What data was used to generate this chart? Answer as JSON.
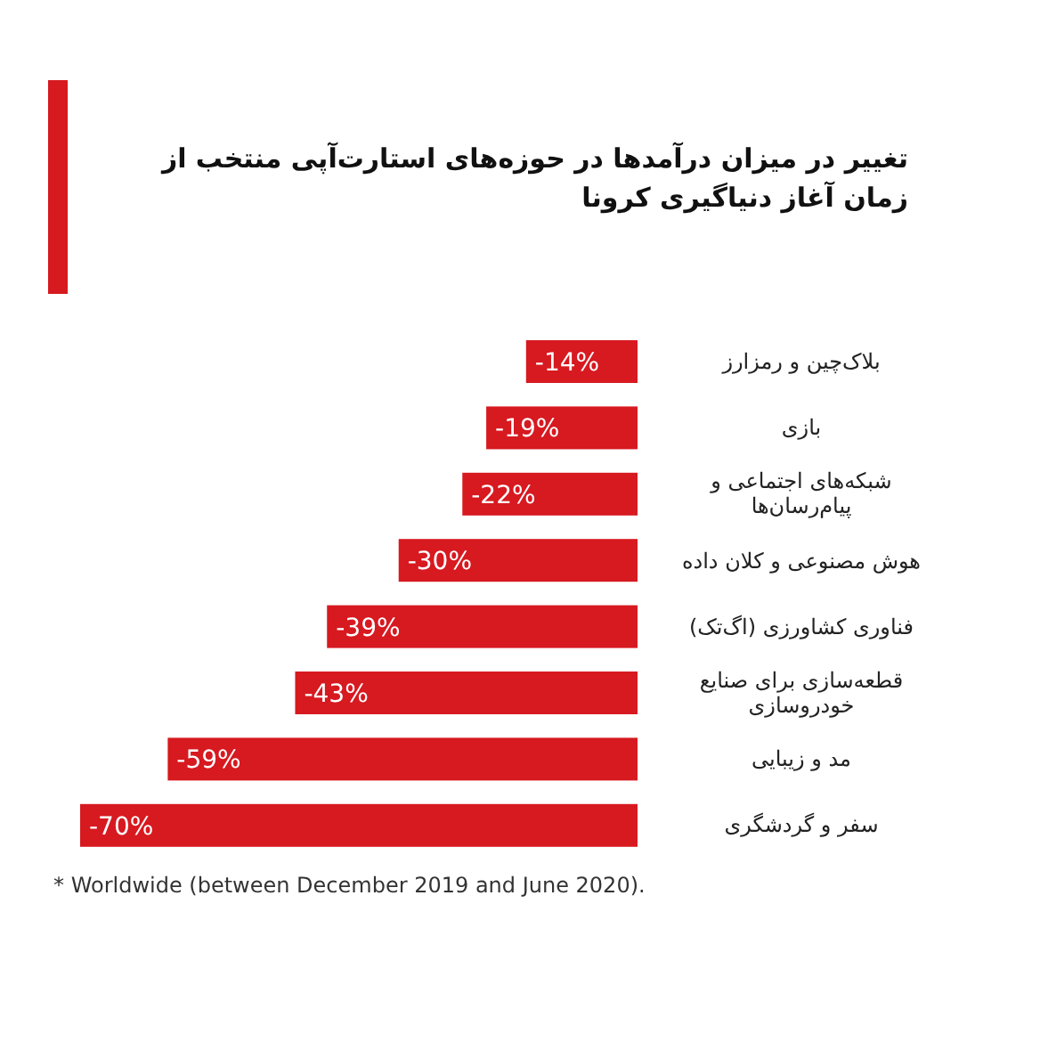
{
  "chart_data": {
    "type": "bar",
    "orientation": "horizontal",
    "title": "تغییر در میزان درآمدها در حوزه‌های استارت‌آپی منتخب از زمان آغاز دنیاگیری کرونا",
    "categories": [
      "بلاک‌چین و رمزارز",
      "بازی",
      "شبکه‌های اجتماعی و پیام‌رسان‌ها",
      "هوش مصنوعی و کلان داده",
      "فناوری کشاورزی (اگ‌تک)",
      "قطعه‌سازی برای صنایع خودروسازی",
      "مد و زیبایی",
      "سفر و گردشگری"
    ],
    "values": [
      -14,
      -19,
      -22,
      -30,
      -39,
      -43,
      -59,
      -70
    ],
    "value_labels": [
      "-14%",
      "-19%",
      "-22%",
      "-30%",
      "-39%",
      "-43%",
      "-59%",
      "-70%"
    ],
    "color": "#d71920",
    "annotations": [
      "* Worldwide (between December 2019 and June 2020)."
    ]
  }
}
